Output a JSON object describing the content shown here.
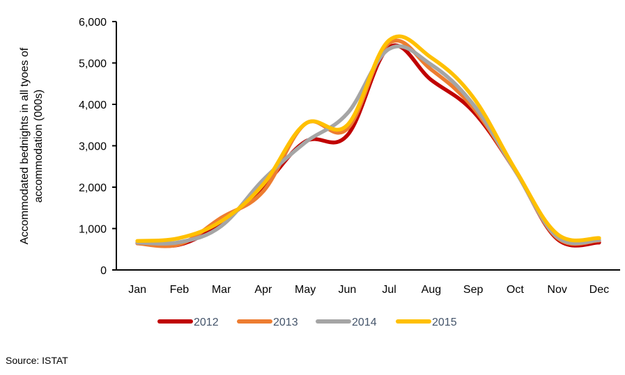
{
  "chart_data": {
    "type": "line",
    "title": "",
    "xlabel": "",
    "ylabel_lines": [
      "Accommodated bednights in all tyoes of",
      "accommodation (000s)"
    ],
    "categories": [
      "Jan",
      "Feb",
      "Mar",
      "Apr",
      "May",
      "Jun",
      "Jul",
      "Aug",
      "Sep",
      "Oct",
      "Nov",
      "Dec"
    ],
    "ylim": [
      0,
      6000
    ],
    "yticks": [
      0,
      1000,
      2000,
      3000,
      4000,
      5000,
      6000
    ],
    "ytick_labels": [
      "0",
      "1,000",
      "2,000",
      "3,000",
      "4,000",
      "5,000",
      "6,000"
    ],
    "grid": false,
    "legend_position": "bottom",
    "series": [
      {
        "name": "2012",
        "color": "#c00000",
        "values": [
          650,
          610,
          1140,
          2020,
          3100,
          3250,
          5380,
          4590,
          3830,
          2400,
          750,
          660
        ]
      },
      {
        "name": "2013",
        "color": "#ed7d31",
        "values": [
          640,
          620,
          1260,
          1900,
          3530,
          3410,
          5480,
          4840,
          3920,
          2400,
          780,
          710
        ]
      },
      {
        "name": "2014",
        "color": "#a5a5a5",
        "values": [
          660,
          670,
          1060,
          2180,
          3080,
          3780,
          5340,
          4960,
          4000,
          2400,
          800,
          720
        ]
      },
      {
        "name": "2015",
        "color": "#ffc000",
        "values": [
          700,
          770,
          1180,
          2070,
          3530,
          3500,
          5550,
          5130,
          4170,
          2430,
          870,
          770
        ]
      }
    ]
  },
  "source": "Source: ISTAT"
}
